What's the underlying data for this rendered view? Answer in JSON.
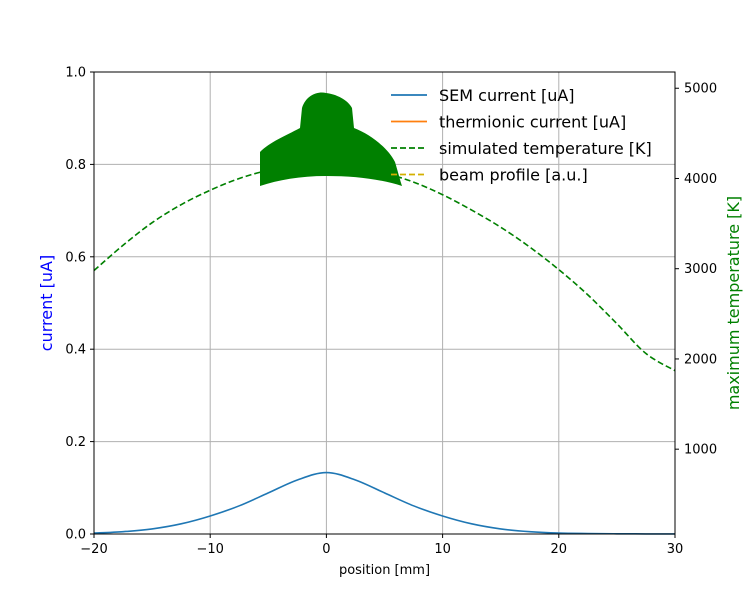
{
  "chart_data": {
    "type": "line",
    "xlabel": "position [mm]",
    "ylabel_left": "current [uA]",
    "ylabel_right": "maximum temperature [K]",
    "xlim": [
      -20,
      30
    ],
    "ylim_left": [
      0,
      1.0
    ],
    "ylim_right": [
      60,
      5180
    ],
    "xticks": [
      "−20",
      "−10",
      "0",
      "10",
      "20",
      "30"
    ],
    "yticks_left": [
      "0.0",
      "0.2",
      "0.4",
      "0.6",
      "0.8",
      "1.0"
    ],
    "yticks_right": [
      "1000",
      "2000",
      "3000",
      "4000",
      "5000"
    ],
    "grid": true,
    "legend_position": "top-right",
    "series": [
      {
        "name": "SEM current [uA]",
        "axis": "left",
        "color": "#1f77b4",
        "style": "solid",
        "x": [
          -20,
          -17.5,
          -15,
          -12.5,
          -10,
          -7.5,
          -5,
          -2.5,
          0,
          2.5,
          5,
          7.5,
          10,
          12.5,
          15,
          17.5,
          20,
          22.5,
          25,
          27.5,
          30
        ],
        "y": [
          0.002,
          0.005,
          0.011,
          0.022,
          0.039,
          0.061,
          0.089,
          0.117,
          0.133,
          0.117,
          0.089,
          0.061,
          0.039,
          0.022,
          0.011,
          0.005,
          0.002,
          0.001,
          0.0005,
          0.0002,
          0.0001
        ]
      },
      {
        "name": "thermionic current [uA]",
        "axis": "left",
        "color": "#ff7f0e",
        "style": "solid",
        "x": [],
        "y": []
      },
      {
        "name": "simulated temperature [K]",
        "axis": "right",
        "color": "#008000",
        "style": "dashed",
        "x": [
          -20,
          -17.5,
          -15,
          -12.5,
          -10,
          -7.5,
          -5,
          -2.5,
          0,
          2.5,
          5,
          7.5,
          10,
          12.5,
          15,
          17.5,
          20,
          22.5,
          25,
          27.5,
          30
        ],
        "y": [
          2980,
          3260,
          3510,
          3710,
          3870,
          4000,
          4090,
          4140,
          4160,
          4130,
          4060,
          3960,
          3820,
          3650,
          3460,
          3240,
          2990,
          2710,
          2390,
          2060,
          1870
        ]
      },
      {
        "name": "beam profile [a.u.]",
        "axis": "left",
        "color": "#d4b000",
        "style": "dashed",
        "x": [],
        "y": []
      }
    ],
    "fill_region_color": "#008000"
  }
}
